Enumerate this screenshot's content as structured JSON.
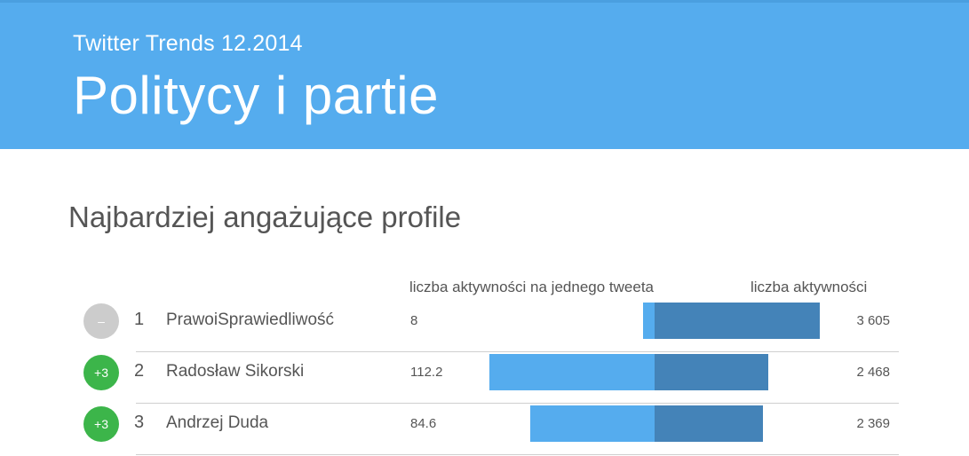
{
  "header": {
    "subtitle": "Twitter Trends 12.2014",
    "title": "Politycy i partie"
  },
  "section": {
    "title": "Najbardziej angażujące profile"
  },
  "columns": {
    "per_tweet_label": "liczba aktywności na jednego tweeta",
    "total_label": "liczba aktywności"
  },
  "colors": {
    "header_bg": "#55acee",
    "per_tweet_bar": "#55acee",
    "total_bar": "#4483b8",
    "badge_neutral": "#cccccc",
    "badge_up": "#3cb54a"
  },
  "rows": [
    {
      "change": "–",
      "change_type": "neutral",
      "rank": "1",
      "name": "PrawoiSprawiedliwość",
      "per_tweet": "8",
      "total": "3 605",
      "per_tweet_value": 8,
      "total_value": 3605
    },
    {
      "change": "+3",
      "change_type": "up",
      "rank": "2",
      "name": "Radosław Sikorski",
      "per_tweet": "112.2",
      "total": "2 468",
      "per_tweet_value": 112.2,
      "total_value": 2468
    },
    {
      "change": "+3",
      "change_type": "up",
      "rank": "3",
      "name": "Andrzej Duda",
      "per_tweet": "84.6",
      "total": "2 369",
      "per_tweet_value": 84.6,
      "total_value": 2369
    }
  ]
}
